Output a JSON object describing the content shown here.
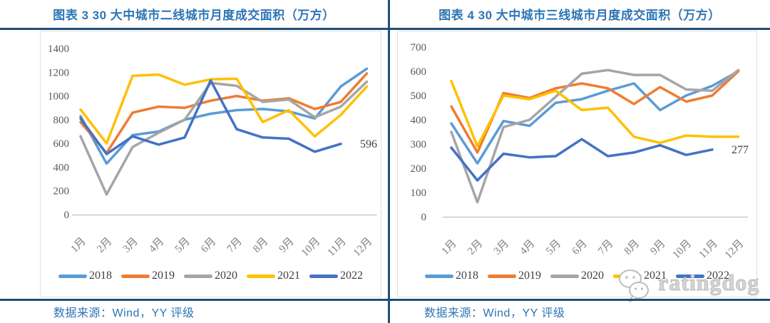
{
  "page": {
    "watermark_text": "ratingdog",
    "source_note": "数据来源：Wind，YY 评级",
    "colors": {
      "accent_navy": "#1F4E79",
      "title_blue": "#2E75B6",
      "axis_label_gray": "#595959",
      "month_label_gray": "#7F7F7F",
      "axis_line_gray": "#C0C0C0",
      "data_label_gray": "#404040"
    }
  },
  "chart_data": [
    {
      "type": "line",
      "title": "图表 3 30 大中城市二线城市月度成交面积（万方）",
      "categories": [
        "1月",
        "2月",
        "3月",
        "4月",
        "5月",
        "6月",
        "7月",
        "8月",
        "9月",
        "10月",
        "11月",
        "12月"
      ],
      "ylim": [
        0,
        1400
      ],
      "yticks": [
        0,
        200,
        400,
        600,
        800,
        1000,
        1200,
        1400
      ],
      "grid": false,
      "legend_position": "bottom",
      "series": [
        {
          "name": "2018",
          "color": "#5B9BD5",
          "values": [
            830,
            430,
            670,
            700,
            800,
            850,
            880,
            890,
            870,
            810,
            1080,
            1230
          ]
        },
        {
          "name": "2019",
          "color": "#ED7D31",
          "values": [
            780,
            520,
            860,
            910,
            900,
            960,
            1000,
            960,
            980,
            890,
            950,
            1190
          ]
        },
        {
          "name": "2020",
          "color": "#A5A5A5",
          "values": [
            660,
            170,
            570,
            690,
            800,
            1110,
            1085,
            950,
            970,
            820,
            910,
            1120
          ]
        },
        {
          "name": "2021",
          "color": "#FFC000",
          "values": [
            885,
            600,
            1170,
            1180,
            1095,
            1140,
            1145,
            780,
            880,
            660,
            840,
            1080
          ]
        },
        {
          "name": "2022",
          "color": "#4472C4",
          "values": [
            810,
            510,
            660,
            590,
            650,
            1130,
            720,
            650,
            640,
            530,
            596
          ],
          "end_label": "596"
        }
      ]
    },
    {
      "type": "line",
      "title": "图表 4 30 大中城市三线城市月度成交面积（万方）",
      "categories": [
        "1月",
        "2月",
        "3月",
        "4月",
        "5月",
        "6月",
        "7月",
        "8月",
        "9月",
        "10月",
        "11月",
        "12月"
      ],
      "ylim": [
        0,
        700
      ],
      "yticks": [
        0,
        100,
        200,
        300,
        400,
        500,
        600,
        700
      ],
      "grid": false,
      "legend_position": "bottom",
      "series": [
        {
          "name": "2018",
          "color": "#5B9BD5",
          "values": [
            385,
            220,
            395,
            375,
            470,
            485,
            520,
            550,
            440,
            500,
            540,
            600
          ]
        },
        {
          "name": "2019",
          "color": "#ED7D31",
          "values": [
            455,
            265,
            510,
            490,
            530,
            550,
            530,
            465,
            535,
            475,
            500,
            600
          ]
        },
        {
          "name": "2020",
          "color": "#A5A5A5",
          "values": [
            350,
            60,
            370,
            400,
            495,
            590,
            605,
            585,
            585,
            525,
            520,
            605
          ]
        },
        {
          "name": "2021",
          "color": "#FFC000",
          "values": [
            560,
            290,
            500,
            485,
            520,
            440,
            450,
            330,
            305,
            335,
            330,
            330
          ]
        },
        {
          "name": "2022",
          "color": "#4472C4",
          "values": [
            285,
            150,
            260,
            245,
            250,
            320,
            250,
            265,
            295,
            255,
            277
          ],
          "end_label": "277"
        }
      ]
    }
  ]
}
